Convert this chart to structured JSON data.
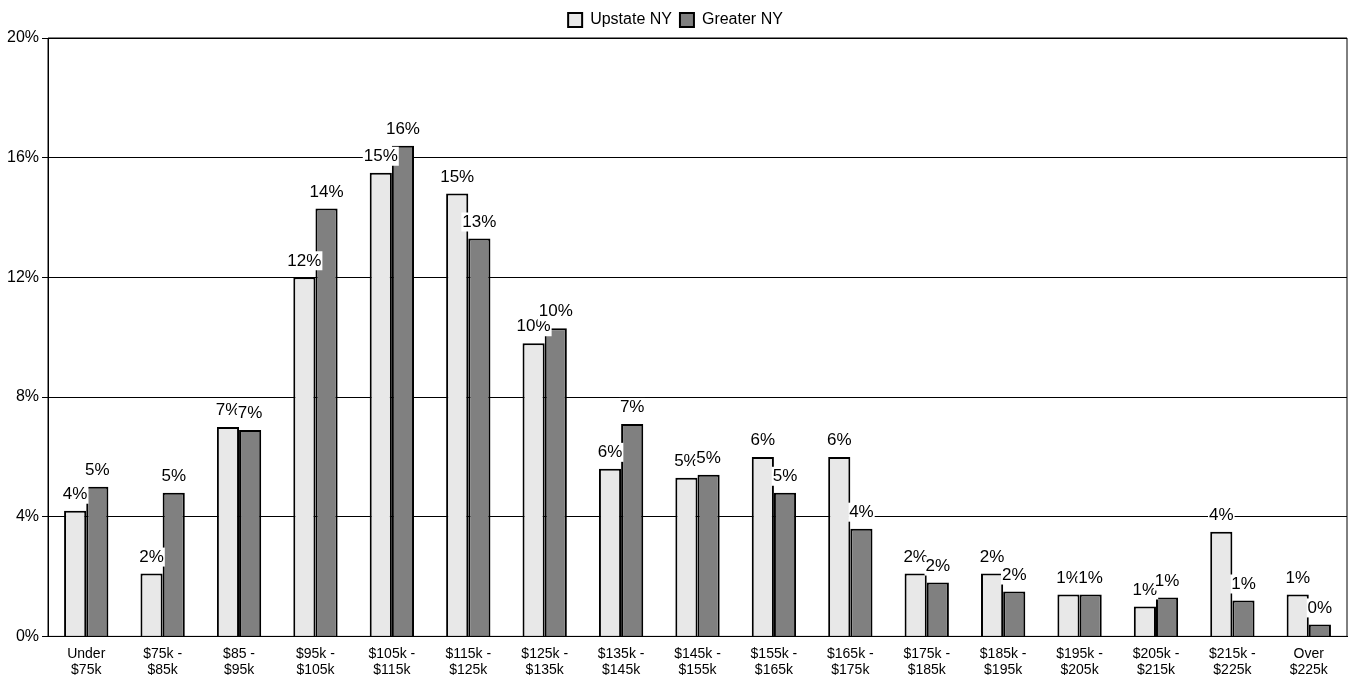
{
  "chart_data": {
    "type": "bar",
    "categories": [
      "Under $75k",
      "$75k - $85k",
      "$85 - $95k",
      "$95k - $105k",
      "$105k - $115k",
      "$115k - $125k",
      "$125k - $135k",
      "$135k - $145k",
      "$145k - $155k",
      "$155k - $165k",
      "$165k - $175k",
      "$175k - $185k",
      "$185k - $195k",
      "$195k - $205k",
      "$205k - $215k",
      "$215k - $225k",
      "Over $225k"
    ],
    "series": [
      {
        "name": "Upstate NY",
        "color": "#e8e8e8",
        "values": [
          4.2,
          2.1,
          7.0,
          12.0,
          15.5,
          14.8,
          9.8,
          5.6,
          5.3,
          6.0,
          6.0,
          2.1,
          2.1,
          1.4,
          1.0,
          3.5,
          1.4
        ],
        "value_labels": [
          "4%",
          "2%",
          "7%",
          "12%",
          "15%",
          "15%",
          "10%",
          "6%",
          "5%",
          "6%",
          "6%",
          "2%",
          "2%",
          "1%",
          "1%",
          "4%",
          "1%"
        ]
      },
      {
        "name": "Greater NY",
        "color": "#808080",
        "values": [
          5.0,
          4.8,
          6.9,
          14.3,
          16.4,
          13.3,
          10.3,
          7.1,
          5.4,
          4.8,
          3.6,
          1.8,
          1.5,
          1.4,
          1.3,
          1.2,
          0.4
        ],
        "value_labels": [
          "5%",
          "5%",
          "7%",
          "14%",
          "16%",
          "13%",
          "10%",
          "7%",
          "5%",
          "5%",
          "4%",
          "2%",
          "2%",
          "1%",
          "1%",
          "1%",
          "0%"
        ]
      }
    ],
    "ylim": [
      0,
      20
    ],
    "yticks": [
      {
        "value": 0,
        "label": "0%"
      },
      {
        "value": 4,
        "label": "4%"
      },
      {
        "value": 8,
        "label": "8%"
      },
      {
        "value": 12,
        "label": "12%"
      },
      {
        "value": 16,
        "label": "16%"
      },
      {
        "value": 20,
        "label": "20%"
      }
    ],
    "grid": "y",
    "legend": "top"
  }
}
